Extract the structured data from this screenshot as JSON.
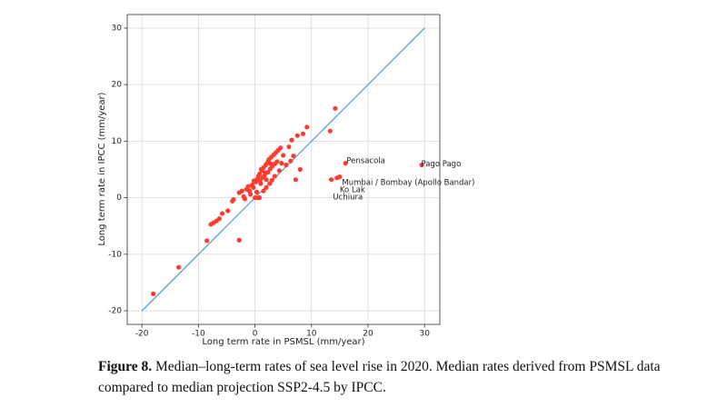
{
  "chart_data": {
    "type": "scatter",
    "xlabel": "Long term rate in PSMSL (mm/year)",
    "ylabel": "Long term rate in IPCC (mm/year)",
    "xlim": [
      -22.6,
      32.7
    ],
    "ylim": [
      -22.4,
      32.4
    ],
    "xticks": [
      -20,
      -10,
      0,
      10,
      20,
      30
    ],
    "yticks": [
      -20,
      -10,
      0,
      10,
      20,
      30
    ],
    "grid": true,
    "color": "#ff3b30",
    "x": [
      -18,
      -13.5,
      -8.5,
      -7.8,
      -7.3,
      -6.8,
      -6.3,
      -5.8,
      -4.8,
      -4,
      -3.8,
      -2.8,
      -2.8,
      -2.3,
      -2,
      -1.8,
      -1.5,
      -1.2,
      -1,
      -0.8,
      -0.5,
      -0.3,
      0,
      0.5,
      0.8,
      0.2,
      0.4,
      0.6,
      0.8,
      1,
      1.2,
      1.4,
      1.5,
      1.7,
      1.9,
      2,
      2.2,
      2.3,
      2.5,
      2.7,
      2.9,
      3.1,
      3.3,
      3.5,
      3.7,
      3.9,
      4.1,
      4.3,
      4.5,
      4.7,
      5,
      5.5,
      6,
      6.3,
      6.5,
      6.8,
      7.2,
      7.5,
      8,
      8.5,
      9.2,
      13.3,
      13.5,
      14.2,
      14.5,
      15,
      16,
      29.5,
      2,
      1.5,
      3,
      3.5,
      2.6,
      0.3,
      -0.2,
      1.1,
      2.4,
      1.8,
      0.9,
      2.8
    ],
    "values": [
      -17,
      -12.3,
      -7.6,
      -4.7,
      -4.4,
      -4.1,
      -3.7,
      -2.8,
      -2.3,
      -0.6,
      -0.3,
      -7.5,
      0.9,
      1.2,
      0.2,
      -0.2,
      1.5,
      2,
      1.2,
      0.6,
      2.3,
      1.8,
      0,
      0,
      0,
      2.8,
      3.3,
      3.8,
      4.2,
      2.5,
      4.8,
      3.6,
      5.3,
      4,
      5.8,
      3.2,
      6.2,
      4.5,
      6.8,
      5.1,
      7.2,
      5.6,
      7.6,
      6,
      8,
      6.4,
      8.4,
      4.8,
      8.8,
      6.1,
      7.5,
      5.8,
      9,
      6.5,
      10.2,
      7.4,
      3.2,
      11,
      5,
      11.3,
      12.5,
      11.8,
      3.2,
      15.8,
      3.5,
      3.7,
      6.1,
      5.8,
      1.8,
      1.2,
      3.1,
      3.8,
      2.5,
      1,
      3,
      5,
      6.6,
      4.4,
      3.1,
      6
    ],
    "lines": [
      {
        "color": "#4b9ad4",
        "x": [
          -20,
          30
        ],
        "values": [
          -20,
          30
        ]
      }
    ],
    "annotations": [
      {
        "text": "Pensacola",
        "x": 16.2,
        "y": 6.5
      },
      {
        "text": "Pago Pago",
        "x": 29.4,
        "y": 6.0
      },
      {
        "text": "Mumbai / Bombay (Apollo Bandar)",
        "x": 15.4,
        "y": 2.7
      },
      {
        "text": "Ko Lak",
        "x": 15.0,
        "y": 1.4
      },
      {
        "text": "Uchiura",
        "x": 13.8,
        "y": 0.1
      }
    ]
  },
  "caption": {
    "label": "Figure 8.",
    "text": "Median–long-term rates of sea level rise in 2020. Median rates derived from PSMSL data compared to median projection SSP2-4.5 by IPCC."
  }
}
